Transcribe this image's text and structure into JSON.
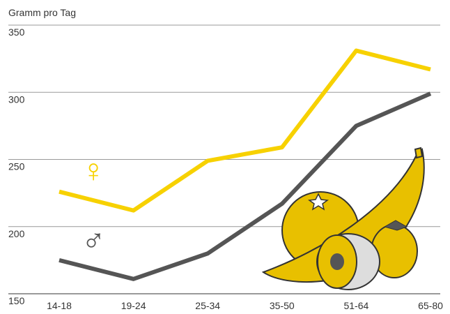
{
  "chart_data": {
    "type": "line",
    "y_label": "Gramm pro Tag",
    "categories": [
      "14-18",
      "19-24",
      "25-34",
      "35-50",
      "51-64",
      "65-80"
    ],
    "series": [
      {
        "name": "♀",
        "color": "#f7d100",
        "values": [
          226,
          212,
          249,
          259,
          331,
          317
        ]
      },
      {
        "name": "♂",
        "color": "#555555",
        "values": [
          175,
          161,
          180,
          217,
          275,
          299
        ]
      }
    ],
    "ylim": [
      150,
      350
    ],
    "yticks": [
      150,
      200,
      250,
      300,
      350
    ],
    "grid": true
  }
}
